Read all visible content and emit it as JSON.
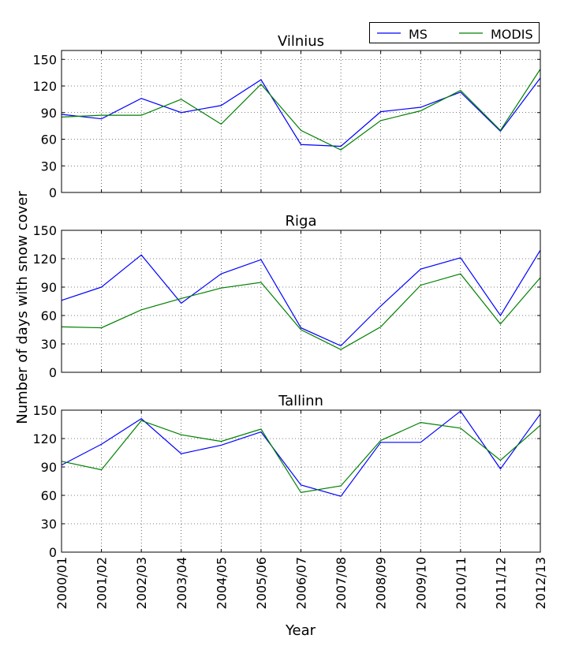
{
  "chart_data": {
    "type": "line",
    "ylabel": "Number of days with snow cover",
    "xlabel": "Year",
    "legend": {
      "placement": "top-right",
      "entries": [
        "MS",
        "MODIS"
      ]
    },
    "colors": {
      "MS": "#0000ff",
      "MODIS": "#008000"
    },
    "categories": [
      "2000/01",
      "2001/02",
      "2002/03",
      "2003/04",
      "2004/05",
      "2005/06",
      "2006/07",
      "2007/08",
      "2008/09",
      "2009/10",
      "2010/11",
      "2011/12",
      "2012/13"
    ],
    "grid": true,
    "panels": [
      {
        "title": "Vilnius",
        "ylim": [
          0,
          160
        ],
        "yticks": [
          "0",
          "30",
          "60",
          "90",
          "120",
          "150"
        ],
        "series": [
          {
            "name": "MS",
            "values": [
              88,
              83,
              106,
              90,
              98,
              127,
              54,
              52,
              91,
              96,
              113,
              69,
              129
            ]
          },
          {
            "name": "MODIS",
            "values": [
              85,
              87,
              87,
              105,
              77,
              122,
              70,
              48,
              81,
              92,
              115,
              70,
              139
            ]
          }
        ]
      },
      {
        "title": "Riga",
        "ylim": [
          0,
          150
        ],
        "yticks": [
          "0",
          "30",
          "60",
          "90",
          "120",
          "150"
        ],
        "series": [
          {
            "name": "MS",
            "values": [
              76,
              90,
              124,
              73,
              104,
              119,
              47,
              28,
              70,
              109,
              121,
              60,
              129
            ]
          },
          {
            "name": "MODIS",
            "values": [
              48,
              47,
              66,
              78,
              89,
              95,
              45,
              24,
              48,
              92,
              104,
              51,
              100
            ]
          }
        ]
      },
      {
        "title": "Tallinn",
        "ylim": [
          0,
          150
        ],
        "yticks": [
          "0",
          "30",
          "60",
          "90",
          "120",
          "150"
        ],
        "series": [
          {
            "name": "MS",
            "values": [
              92,
              114,
              141,
              104,
              113,
              127,
              71,
              59,
              116,
              116,
              149,
              88,
              146
            ]
          },
          {
            "name": "MODIS",
            "values": [
              96,
              87,
              139,
              124,
              117,
              130,
              63,
              70,
              118,
              137,
              131,
              97,
              134
            ]
          }
        ]
      }
    ]
  }
}
